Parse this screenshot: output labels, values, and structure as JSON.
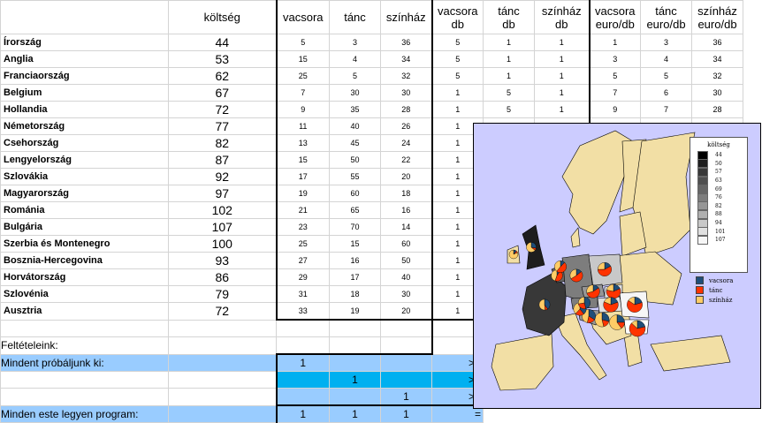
{
  "headers": {
    "cost": "költség",
    "h_vac": "vacsora",
    "h_tanc": "tánc",
    "h_szin": "színház",
    "db_vac": [
      "vacsora",
      "db"
    ],
    "db_tanc": [
      "tánc",
      "db"
    ],
    "db_szin": [
      "színház",
      "db"
    ],
    "eu_vac": [
      "vacsora",
      "euro/db"
    ],
    "eu_tanc": [
      "tánc",
      "euro/db"
    ],
    "eu_szin": [
      "színház",
      "euro/db"
    ]
  },
  "rows": [
    {
      "country": "Írország",
      "cost": "44",
      "v": "5",
      "t": "3",
      "s": "36",
      "dv": "5",
      "dt": "1",
      "ds": "1",
      "ev": "1",
      "et": "3",
      "es": "36"
    },
    {
      "country": "Anglia",
      "cost": "53",
      "v": "15",
      "t": "4",
      "s": "34",
      "dv": "5",
      "dt": "1",
      "ds": "1",
      "ev": "3",
      "et": "4",
      "es": "34"
    },
    {
      "country": "Franciaország",
      "cost": "62",
      "v": "25",
      "t": "5",
      "s": "32",
      "dv": "5",
      "dt": "1",
      "ds": "1",
      "ev": "5",
      "et": "5",
      "es": "32"
    },
    {
      "country": "Belgium",
      "cost": "67",
      "v": "7",
      "t": "30",
      "s": "30",
      "dv": "1",
      "dt": "5",
      "ds": "1",
      "ev": "7",
      "et": "6",
      "es": "30"
    },
    {
      "country": "Hollandia",
      "cost": "72",
      "v": "9",
      "t": "35",
      "s": "28",
      "dv": "1",
      "dt": "5",
      "ds": "1",
      "ev": "9",
      "et": "7",
      "es": "28"
    },
    {
      "country": "Németország",
      "cost": "77",
      "v": "11",
      "t": "40",
      "s": "26",
      "dv": "1"
    },
    {
      "country": "Csehország",
      "cost": "82",
      "v": "13",
      "t": "45",
      "s": "24",
      "dv": "1"
    },
    {
      "country": "Lengyelország",
      "cost": "87",
      "v": "15",
      "t": "50",
      "s": "22",
      "dv": "1"
    },
    {
      "country": "Szlovákia",
      "cost": "92",
      "v": "17",
      "t": "55",
      "s": "20",
      "dv": "1"
    },
    {
      "country": "Magyarország",
      "cost": "97",
      "v": "19",
      "t": "60",
      "s": "18",
      "dv": "1"
    },
    {
      "country": "Románia",
      "cost": "102",
      "v": "21",
      "t": "65",
      "s": "16",
      "dv": "1"
    },
    {
      "country": "Bulgária",
      "cost": "107",
      "v": "23",
      "t": "70",
      "s": "14",
      "dv": "1"
    },
    {
      "country": "Szerbia és Montenegro",
      "cost": "100",
      "v": "25",
      "t": "15",
      "s": "60",
      "dv": "1"
    },
    {
      "country": "Bosznia-Hercegovina",
      "cost": "93",
      "v": "27",
      "t": "16",
      "s": "50",
      "dv": "1"
    },
    {
      "country": "Horvátország",
      "cost": "86",
      "v": "29",
      "t": "17",
      "s": "40",
      "dv": "1"
    },
    {
      "country": "Szlovénia",
      "cost": "79",
      "v": "31",
      "t": "18",
      "s": "30",
      "dv": "1"
    },
    {
      "country": "Ausztria",
      "cost": "72",
      "v": "33",
      "t": "19",
      "s": "20",
      "dv": "1"
    }
  ],
  "conditions": {
    "title": "Feltételeink:",
    "try_all": "Mindent próbáljunk ki:",
    "every_evening": "Minden este legyen program:",
    "r1": [
      "1",
      "",
      "",
      ">="
    ],
    "r2": [
      "",
      "1",
      "",
      ">="
    ],
    "r3": [
      "",
      "",
      "1",
      ">="
    ],
    "r4": [
      "1",
      "1",
      "1",
      "="
    ]
  },
  "map": {
    "legend_title": "költség",
    "legend_values": [
      "44",
      "50",
      "57",
      "63",
      "69",
      "76",
      "82",
      "88",
      "94",
      "101",
      "107"
    ],
    "legend_colors": [
      "#000000",
      "#1e1e1e",
      "#383838",
      "#4f4f4f",
      "#666666",
      "#7d7d7d",
      "#969696",
      "#afafaf",
      "#c8c8c8",
      "#e0e0e0",
      "#f6f6f6"
    ],
    "series": [
      {
        "name": "vacsora",
        "color": "#1f4e79"
      },
      {
        "name": "tánc",
        "color": "#ff3300"
      },
      {
        "name": "színház",
        "color": "#ffcc66"
      }
    ],
    "land_color": "#f2dfa5",
    "sea_color": "#ccccff"
  }
}
